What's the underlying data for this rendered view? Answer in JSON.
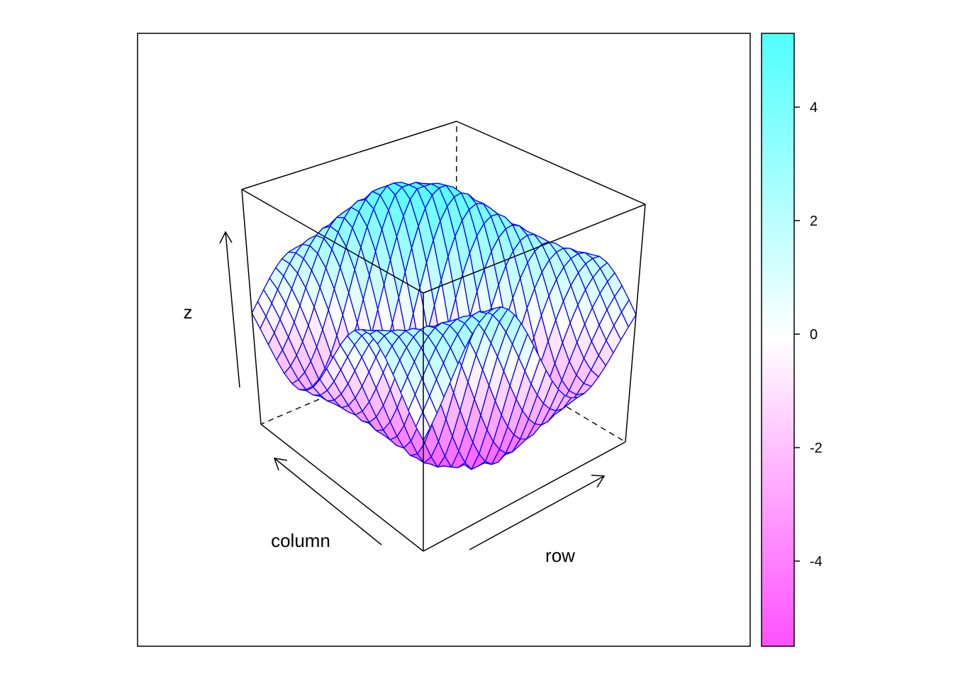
{
  "chart_data": {
    "type": "wireframe",
    "title": "",
    "axes": {
      "x_label": "row",
      "y_label": "column",
      "z_label": "z"
    },
    "grid": {
      "rows": 32,
      "columns": 24
    },
    "colorkey": {
      "min": -5.5,
      "max": 5.3,
      "ticks": [
        -4,
        -2,
        0,
        2,
        4
      ],
      "tick_labels": [
        "-4",
        "-2",
        "0",
        "2",
        "4"
      ],
      "low_color": "#ff50ff",
      "mid_color": "#ffffff",
      "high_color": "#50ffff",
      "placement": "right"
    },
    "surface": {
      "line_color": "#0000ff",
      "description_free": true
    }
  }
}
